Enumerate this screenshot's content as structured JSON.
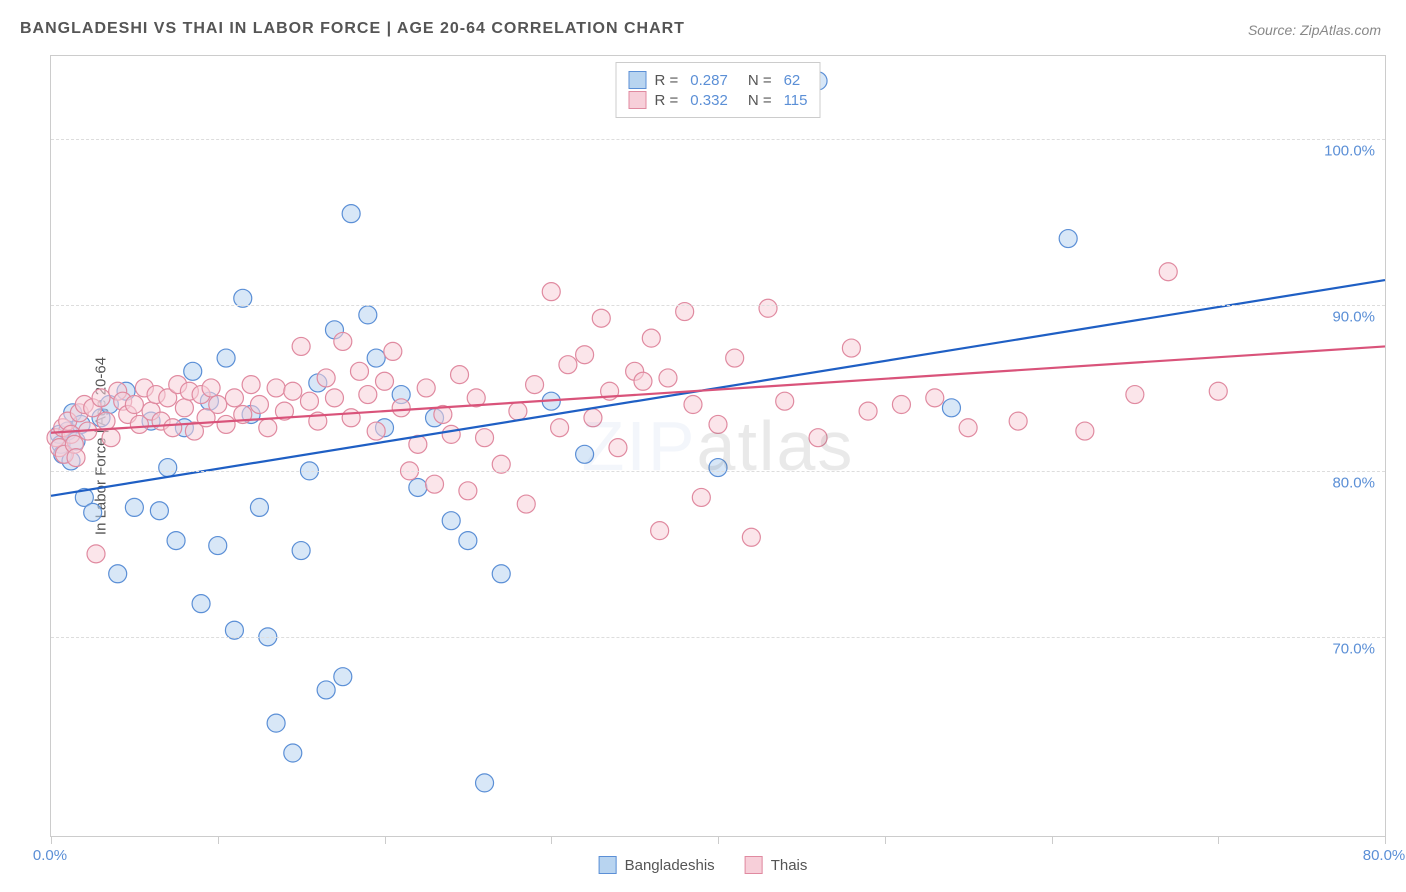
{
  "title": "BANGLADESHI VS THAI IN LABOR FORCE | AGE 20-64 CORRELATION CHART",
  "source": "Source: ZipAtlas.com",
  "y_axis_label": "In Labor Force | Age 20-64",
  "watermark_prefix": "ZIP",
  "watermark_suffix": "atlas",
  "chart": {
    "type": "scatter-with-trend",
    "xlim": [
      0,
      80
    ],
    "ylim": [
      58,
      105
    ],
    "x_ticks": [
      0,
      10,
      20,
      30,
      40,
      50,
      60,
      70,
      80
    ],
    "x_tick_labels": {
      "0": "0.0%",
      "80": "80.0%"
    },
    "y_ticks": [
      70,
      80,
      90,
      100
    ],
    "y_tick_labels": {
      "70": "70.0%",
      "80": "80.0%",
      "90": "90.0%",
      "100": "100.0%"
    },
    "background_color": "#ffffff",
    "grid_color": "#dddddd",
    "border_color": "#cccccc",
    "marker_radius": 9,
    "marker_opacity": 0.55,
    "marker_stroke_width": 1.2,
    "trend_line_width": 2.2,
    "series": [
      {
        "name": "Bangladeshis",
        "fill_color": "#b8d4f0",
        "stroke_color": "#5b8fd6",
        "line_color": "#1f5fc4",
        "R": "0.287",
        "N": "62",
        "trend": {
          "x1": 0,
          "y1": 78.5,
          "x2": 80,
          "y2": 91.5
        },
        "points": [
          [
            0.5,
            82.2
          ],
          [
            0.6,
            81.6
          ],
          [
            0.7,
            81.0
          ],
          [
            1.0,
            82.4
          ],
          [
            1.2,
            80.6
          ],
          [
            1.3,
            83.5
          ],
          [
            1.5,
            81.8
          ],
          [
            1.8,
            82.8
          ],
          [
            2.0,
            78.4
          ],
          [
            2.5,
            77.5
          ],
          [
            3.0,
            83.2
          ],
          [
            3.5,
            84.0
          ],
          [
            4.0,
            73.8
          ],
          [
            4.5,
            84.8
          ],
          [
            5.0,
            77.8
          ],
          [
            6.0,
            83.0
          ],
          [
            6.5,
            77.6
          ],
          [
            7.0,
            80.2
          ],
          [
            7.5,
            75.8
          ],
          [
            8.0,
            82.6
          ],
          [
            8.5,
            86.0
          ],
          [
            9.0,
            72.0
          ],
          [
            9.5,
            84.2
          ],
          [
            10.0,
            75.5
          ],
          [
            10.5,
            86.8
          ],
          [
            11.0,
            70.4
          ],
          [
            11.5,
            90.4
          ],
          [
            12.0,
            83.4
          ],
          [
            12.5,
            77.8
          ],
          [
            13.0,
            70.0
          ],
          [
            13.5,
            64.8
          ],
          [
            14.5,
            63.0
          ],
          [
            15.0,
            75.2
          ],
          [
            15.5,
            80.0
          ],
          [
            16.0,
            85.3
          ],
          [
            16.5,
            66.8
          ],
          [
            17.0,
            88.5
          ],
          [
            17.5,
            67.6
          ],
          [
            18.0,
            95.5
          ],
          [
            19.0,
            89.4
          ],
          [
            19.5,
            86.8
          ],
          [
            20.0,
            82.6
          ],
          [
            21.0,
            84.6
          ],
          [
            22.0,
            79.0
          ],
          [
            23.0,
            83.2
          ],
          [
            24.0,
            77.0
          ],
          [
            25.0,
            75.8
          ],
          [
            26.0,
            61.2
          ],
          [
            27.0,
            73.8
          ],
          [
            30.0,
            84.2
          ],
          [
            32.0,
            81.0
          ],
          [
            40.0,
            80.2
          ],
          [
            46.0,
            103.5
          ],
          [
            54.0,
            83.8
          ],
          [
            61.0,
            94.0
          ]
        ]
      },
      {
        "name": "Thais",
        "fill_color": "#f7cfd9",
        "stroke_color": "#e08aa0",
        "line_color": "#d9537a",
        "R": "0.332",
        "N": "115",
        "trend": {
          "x1": 0,
          "y1": 82.3,
          "x2": 80,
          "y2": 87.5
        },
        "points": [
          [
            0.3,
            82.0
          ],
          [
            0.5,
            81.4
          ],
          [
            0.7,
            82.6
          ],
          [
            0.8,
            81.0
          ],
          [
            1.0,
            83.0
          ],
          [
            1.2,
            82.2
          ],
          [
            1.4,
            81.6
          ],
          [
            1.5,
            80.8
          ],
          [
            1.7,
            83.5
          ],
          [
            2.0,
            84.0
          ],
          [
            2.2,
            82.4
          ],
          [
            2.5,
            83.8
          ],
          [
            2.7,
            75.0
          ],
          [
            3.0,
            84.4
          ],
          [
            3.3,
            83.0
          ],
          [
            3.6,
            82.0
          ],
          [
            4.0,
            84.8
          ],
          [
            4.3,
            84.2
          ],
          [
            4.6,
            83.4
          ],
          [
            5.0,
            84.0
          ],
          [
            5.3,
            82.8
          ],
          [
            5.6,
            85.0
          ],
          [
            6.0,
            83.6
          ],
          [
            6.3,
            84.6
          ],
          [
            6.6,
            83.0
          ],
          [
            7.0,
            84.4
          ],
          [
            7.3,
            82.6
          ],
          [
            7.6,
            85.2
          ],
          [
            8.0,
            83.8
          ],
          [
            8.3,
            84.8
          ],
          [
            8.6,
            82.4
          ],
          [
            9.0,
            84.6
          ],
          [
            9.3,
            83.2
          ],
          [
            9.6,
            85.0
          ],
          [
            10.0,
            84.0
          ],
          [
            10.5,
            82.8
          ],
          [
            11.0,
            84.4
          ],
          [
            11.5,
            83.4
          ],
          [
            12.0,
            85.2
          ],
          [
            12.5,
            84.0
          ],
          [
            13.0,
            82.6
          ],
          [
            13.5,
            85.0
          ],
          [
            14.0,
            83.6
          ],
          [
            14.5,
            84.8
          ],
          [
            15.0,
            87.5
          ],
          [
            15.5,
            84.2
          ],
          [
            16.0,
            83.0
          ],
          [
            16.5,
            85.6
          ],
          [
            17.0,
            84.4
          ],
          [
            17.5,
            87.8
          ],
          [
            18.0,
            83.2
          ],
          [
            18.5,
            86.0
          ],
          [
            19.0,
            84.6
          ],
          [
            19.5,
            82.4
          ],
          [
            20.0,
            85.4
          ],
          [
            20.5,
            87.2
          ],
          [
            21.0,
            83.8
          ],
          [
            21.5,
            80.0
          ],
          [
            22.0,
            81.6
          ],
          [
            22.5,
            85.0
          ],
          [
            23.0,
            79.2
          ],
          [
            23.5,
            83.4
          ],
          [
            24.0,
            82.2
          ],
          [
            24.5,
            85.8
          ],
          [
            25.0,
            78.8
          ],
          [
            25.5,
            84.4
          ],
          [
            26.0,
            82.0
          ],
          [
            27.0,
            80.4
          ],
          [
            28.0,
            83.6
          ],
          [
            28.5,
            78.0
          ],
          [
            29.0,
            85.2
          ],
          [
            30.0,
            90.8
          ],
          [
            30.5,
            82.6
          ],
          [
            31.0,
            86.4
          ],
          [
            32.0,
            87.0
          ],
          [
            32.5,
            83.2
          ],
          [
            33.0,
            89.2
          ],
          [
            33.5,
            84.8
          ],
          [
            34.0,
            81.4
          ],
          [
            35.0,
            86.0
          ],
          [
            35.5,
            85.4
          ],
          [
            36.0,
            88.0
          ],
          [
            36.5,
            76.4
          ],
          [
            37.0,
            85.6
          ],
          [
            38.0,
            89.6
          ],
          [
            38.5,
            84.0
          ],
          [
            39.0,
            78.4
          ],
          [
            40.0,
            82.8
          ],
          [
            41.0,
            86.8
          ],
          [
            42.0,
            76.0
          ],
          [
            43.0,
            89.8
          ],
          [
            44.0,
            84.2
          ],
          [
            46.0,
            82.0
          ],
          [
            48.0,
            87.4
          ],
          [
            49.0,
            83.6
          ],
          [
            51.0,
            84.0
          ],
          [
            53.0,
            84.4
          ],
          [
            55.0,
            82.6
          ],
          [
            58.0,
            83.0
          ],
          [
            62.0,
            82.4
          ],
          [
            65.0,
            84.6
          ],
          [
            67.0,
            92.0
          ],
          [
            70.0,
            84.8
          ]
        ]
      }
    ]
  },
  "stat_legend": {
    "R_label": "R =",
    "N_label": "N ="
  },
  "bottom_legend_labels": [
    "Bangladeshis",
    "Thais"
  ]
}
